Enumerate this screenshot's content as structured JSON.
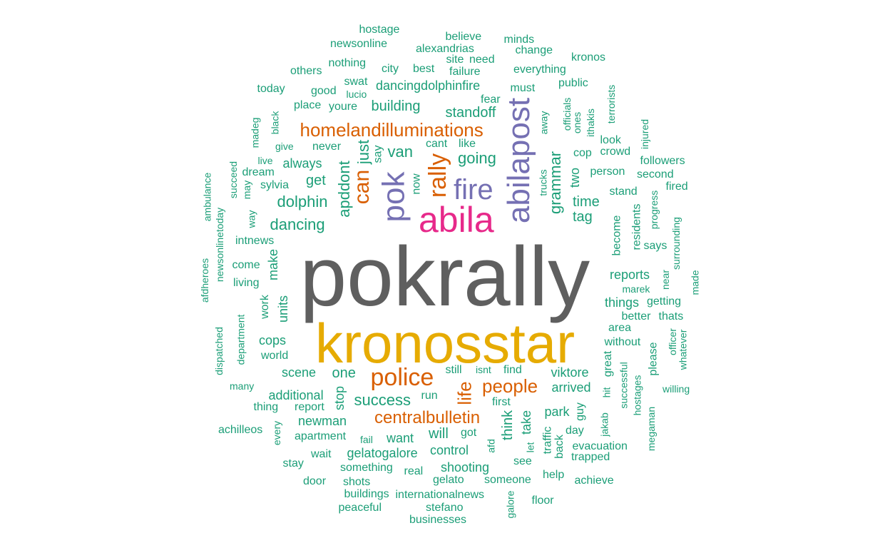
{
  "colors": {
    "background": "#ffffff",
    "gray": "#5f5f5f",
    "gold": "#e6ab02",
    "pink": "#e7298a",
    "purple": "#7570b3",
    "orange": "#d95f02",
    "teal": "#1b9e77"
  },
  "words": [
    {
      "text": "pokrally"
    },
    {
      "text": "kronosstar"
    },
    {
      "text": "abila"
    },
    {
      "text": "abilapost"
    },
    {
      "text": "pok"
    },
    {
      "text": "fire"
    },
    {
      "text": "police"
    },
    {
      "text": "rally"
    },
    {
      "text": "can"
    },
    {
      "text": "homelandilluminations"
    },
    {
      "text": "centralbulletin"
    },
    {
      "text": "people"
    },
    {
      "text": "life"
    },
    {
      "text": "success"
    },
    {
      "text": "apddont"
    },
    {
      "text": "just"
    },
    {
      "text": "van"
    },
    {
      "text": "going"
    },
    {
      "text": "standoff"
    },
    {
      "text": "dancing"
    },
    {
      "text": "dolphin"
    },
    {
      "text": "grammar"
    },
    {
      "text": "one"
    },
    {
      "text": "viktore"
    },
    {
      "text": "arrived"
    },
    {
      "text": "building"
    },
    {
      "text": "tag"
    },
    {
      "text": "time"
    },
    {
      "text": "get"
    },
    {
      "text": "think"
    },
    {
      "text": "take"
    },
    {
      "text": "make"
    },
    {
      "text": "two"
    },
    {
      "text": "will"
    },
    {
      "text": "want"
    },
    {
      "text": "control"
    },
    {
      "text": "reports"
    },
    {
      "text": "things"
    },
    {
      "text": "scene"
    },
    {
      "text": "cops"
    },
    {
      "text": "additional"
    },
    {
      "text": "units"
    },
    {
      "text": "stop"
    },
    {
      "text": "still"
    },
    {
      "text": "park"
    },
    {
      "text": "area"
    },
    {
      "text": "newman"
    },
    {
      "text": "shooting"
    },
    {
      "text": "gelatogalore"
    },
    {
      "text": "dancingdolphinfire"
    },
    {
      "text": "swat"
    },
    {
      "text": "always"
    },
    {
      "text": "never"
    },
    {
      "text": "cant"
    },
    {
      "text": "like"
    },
    {
      "text": "world"
    },
    {
      "text": "something"
    },
    {
      "text": "youre"
    },
    {
      "text": "city"
    },
    {
      "text": "best"
    },
    {
      "text": "everything"
    },
    {
      "text": "must"
    },
    {
      "text": "fear"
    },
    {
      "text": "now"
    },
    {
      "text": "say"
    },
    {
      "text": "guy"
    },
    {
      "text": "day"
    },
    {
      "text": "someone"
    },
    {
      "text": "internationalnews"
    },
    {
      "text": "evacuation"
    },
    {
      "text": "trapped"
    },
    {
      "text": "apartment"
    },
    {
      "text": "wait"
    },
    {
      "text": "gelato"
    },
    {
      "text": "buildings"
    },
    {
      "text": "see"
    },
    {
      "text": "real"
    },
    {
      "text": "shots"
    },
    {
      "text": "stay"
    },
    {
      "text": "door"
    },
    {
      "text": "peaceful"
    },
    {
      "text": "stefano"
    },
    {
      "text": "businesses"
    },
    {
      "text": "floor"
    },
    {
      "text": "help"
    },
    {
      "text": "achieve"
    },
    {
      "text": "galore"
    },
    {
      "text": "first"
    },
    {
      "text": "find"
    },
    {
      "text": "isnt"
    },
    {
      "text": "got"
    },
    {
      "text": "afd"
    },
    {
      "text": "traffic"
    },
    {
      "text": "back"
    },
    {
      "text": "let"
    },
    {
      "text": "run"
    },
    {
      "text": "fail"
    },
    {
      "text": "report"
    },
    {
      "text": "thing"
    },
    {
      "text": "every"
    },
    {
      "text": "many"
    },
    {
      "text": "achilleos"
    },
    {
      "text": "department"
    },
    {
      "text": "dispatched"
    },
    {
      "text": "afdheroes"
    },
    {
      "text": "newsonlinetoday"
    },
    {
      "text": "ambulance"
    },
    {
      "text": "succeed"
    },
    {
      "text": "may"
    },
    {
      "text": "way"
    },
    {
      "text": "intnews"
    },
    {
      "text": "come"
    },
    {
      "text": "living"
    },
    {
      "text": "work"
    },
    {
      "text": "madeg"
    },
    {
      "text": "black"
    },
    {
      "text": "live"
    },
    {
      "text": "dream"
    },
    {
      "text": "give"
    },
    {
      "text": "sylvia"
    },
    {
      "text": "place"
    },
    {
      "text": "today"
    },
    {
      "text": "good"
    },
    {
      "text": "lucio"
    },
    {
      "text": "others"
    },
    {
      "text": "nothing"
    },
    {
      "text": "hostage"
    },
    {
      "text": "newsonline"
    },
    {
      "text": "alexandrias"
    },
    {
      "text": "believe"
    },
    {
      "text": "minds"
    },
    {
      "text": "change"
    },
    {
      "text": "kronos"
    },
    {
      "text": "site"
    },
    {
      "text": "need"
    },
    {
      "text": "failure"
    },
    {
      "text": "public"
    },
    {
      "text": "officials"
    },
    {
      "text": "ones"
    },
    {
      "text": "ithakis"
    },
    {
      "text": "terrorists"
    },
    {
      "text": "away"
    },
    {
      "text": "trucks"
    },
    {
      "text": "cop"
    },
    {
      "text": "crowd"
    },
    {
      "text": "look"
    },
    {
      "text": "injured"
    },
    {
      "text": "followers"
    },
    {
      "text": "second"
    },
    {
      "text": "fired"
    },
    {
      "text": "person"
    },
    {
      "text": "stand"
    },
    {
      "text": "progress"
    },
    {
      "text": "surrounding"
    },
    {
      "text": "made"
    },
    {
      "text": "become"
    },
    {
      "text": "residents"
    },
    {
      "text": "says"
    },
    {
      "text": "near"
    },
    {
      "text": "marek"
    },
    {
      "text": "getting"
    },
    {
      "text": "better"
    },
    {
      "text": "thats"
    },
    {
      "text": "officer"
    },
    {
      "text": "whatever"
    },
    {
      "text": "without"
    },
    {
      "text": "great"
    },
    {
      "text": "please"
    },
    {
      "text": "successful"
    },
    {
      "text": "hostages"
    },
    {
      "text": "willing"
    },
    {
      "text": "jakab"
    },
    {
      "text": "hit"
    },
    {
      "text": "megaman"
    }
  ]
}
